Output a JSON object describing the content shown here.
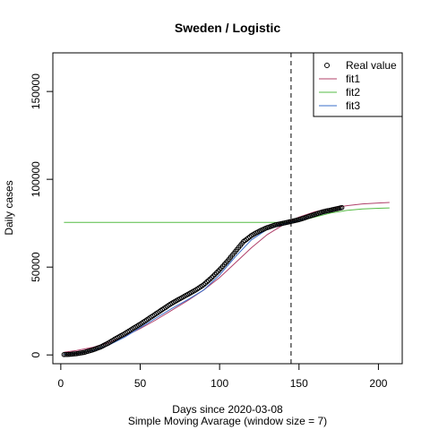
{
  "chart_data": {
    "type": "line",
    "title": "Sweden / Logistic",
    "xlabel": "Days since 2020-03-08",
    "subtitle": "Simple Moving Avarage (window size = 7)",
    "ylabel": "Daily cases",
    "xlim": [
      -5,
      215
    ],
    "ylim": [
      -5000,
      172000
    ],
    "x_ticks": [
      0,
      50,
      100,
      150,
      200
    ],
    "y_ticks": [
      0,
      50000,
      100000,
      150000
    ],
    "x_tick_labels": [
      "0",
      "50",
      "100",
      "150",
      "200"
    ],
    "y_tick_labels": [
      "0",
      "50000",
      "100000",
      "150000"
    ],
    "vline_x": 145,
    "legend_position": "top-right",
    "legend": [
      {
        "label": "Real value",
        "kind": "point",
        "color": "#000000"
      },
      {
        "label": "fit1",
        "kind": "line",
        "color": "#b0406a"
      },
      {
        "label": "fit2",
        "kind": "line",
        "color": "#55bb44"
      },
      {
        "label": "fit3",
        "kind": "line",
        "color": "#3a6fc9"
      }
    ],
    "series": [
      {
        "key": "real",
        "kind": "points",
        "color": "#000000",
        "x": [
          2,
          5,
          10,
          15,
          20,
          25,
          30,
          35,
          40,
          45,
          50,
          55,
          60,
          65,
          70,
          75,
          80,
          85,
          90,
          95,
          100,
          105,
          110,
          115,
          118,
          120,
          125,
          130,
          135,
          140,
          145,
          150,
          155,
          160,
          165,
          170,
          175,
          177
        ],
        "y": [
          200,
          300,
          700,
          1500,
          2800,
          4500,
          6800,
          9500,
          12000,
          14800,
          17500,
          20500,
          23500,
          26500,
          29500,
          32000,
          34500,
          37000,
          40000,
          44000,
          48500,
          53500,
          59000,
          64500,
          66500,
          68000,
          70500,
          72500,
          74000,
          75000,
          76000,
          77000,
          78500,
          80000,
          81500,
          82500,
          83500,
          83900
        ]
      },
      {
        "key": "fit1",
        "kind": "line",
        "color": "#b0406a",
        "x": [
          2,
          10,
          20,
          30,
          40,
          50,
          60,
          70,
          80,
          90,
          100,
          110,
          120,
          130,
          140,
          145,
          150,
          160,
          170,
          180,
          190,
          200,
          207
        ],
        "y": [
          1500,
          2500,
          4300,
          7000,
          10600,
          15000,
          20000,
          25500,
          31000,
          37000,
          44000,
          52500,
          61000,
          68500,
          74000,
          76500,
          78500,
          81500,
          83500,
          85000,
          86000,
          86500,
          86800
        ]
      },
      {
        "key": "fit2",
        "kind": "line",
        "color": "#55bb44",
        "x": [
          2,
          50,
          100,
          140,
          145,
          150,
          160,
          170,
          180,
          190,
          200,
          207
        ],
        "y": [
          75500,
          75500,
          75500,
          75500,
          75600,
          76200,
          78500,
          80800,
          82300,
          83100,
          83500,
          83700
        ]
      },
      {
        "key": "fit3",
        "kind": "line",
        "color": "#3a6fc9",
        "x": [
          2,
          10,
          20,
          30,
          40,
          50,
          60,
          70,
          80,
          90,
          100,
          110,
          120,
          130,
          140,
          150,
          160,
          170,
          177
        ],
        "y": [
          300,
          800,
          2300,
          5500,
          10000,
          15500,
          21000,
          26500,
          31500,
          37000,
          45500,
          56000,
          65500,
          71500,
          74500,
          76500,
          79000,
          81500,
          83000
        ]
      }
    ]
  }
}
